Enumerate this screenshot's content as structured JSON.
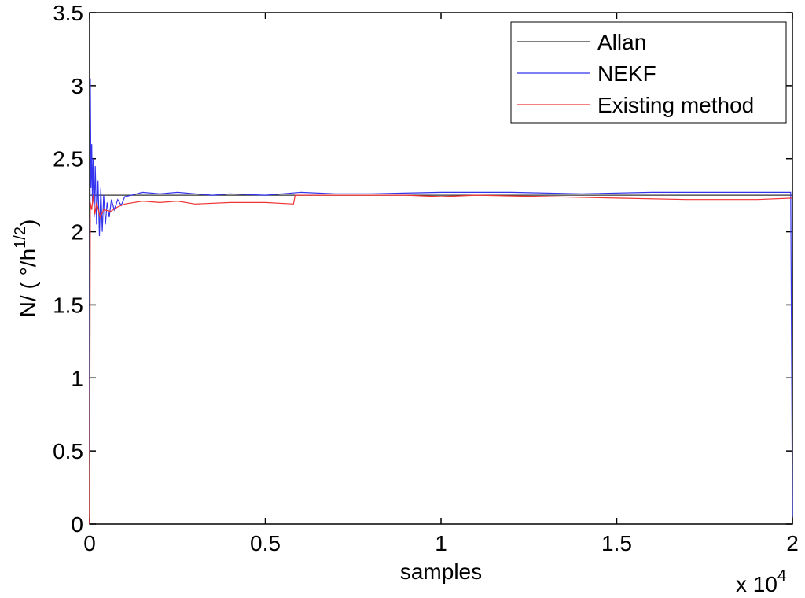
{
  "chart_data": {
    "type": "line",
    "title": "",
    "xlabel": "samples",
    "ylabel_main": "N/ ( °/h",
    "ylabel_sup": "1/2",
    "ylabel_close": ")",
    "x_multiplier_base": "x 10",
    "x_multiplier_exp": "4",
    "xlim": [
      0,
      20000
    ],
    "ylim": [
      0,
      3.5
    ],
    "xticks": [
      0,
      5000,
      10000,
      15000,
      20000
    ],
    "xtick_labels": [
      "0",
      "0.5",
      "1",
      "1.5",
      "2"
    ],
    "yticks": [
      0,
      0.5,
      1,
      1.5,
      2,
      2.5,
      3,
      3.5
    ],
    "ytick_labels": [
      "0",
      "0.5",
      "1",
      "1.5",
      "2",
      "2.5",
      "3",
      "3.5"
    ],
    "grid": false,
    "legend_position": "top-right",
    "series": [
      {
        "name": "Allan",
        "color": "#333333",
        "points": [
          [
            0,
            2.25
          ],
          [
            20000,
            2.25
          ]
        ]
      },
      {
        "name": "NEKF",
        "color": "#3333ee",
        "points": [
          [
            0,
            0.5
          ],
          [
            20,
            3.05
          ],
          [
            40,
            2.3
          ],
          [
            60,
            2.6
          ],
          [
            80,
            2.2
          ],
          [
            100,
            2.5
          ],
          [
            130,
            2.1
          ],
          [
            160,
            2.45
          ],
          [
            200,
            2.05
          ],
          [
            240,
            2.35
          ],
          [
            280,
            1.97
          ],
          [
            320,
            2.3
          ],
          [
            360,
            2.0
          ],
          [
            400,
            2.25
          ],
          [
            450,
            2.05
          ],
          [
            500,
            2.2
          ],
          [
            560,
            2.1
          ],
          [
            620,
            2.22
          ],
          [
            700,
            2.15
          ],
          [
            800,
            2.22
          ],
          [
            900,
            2.18
          ],
          [
            1000,
            2.24
          ],
          [
            1200,
            2.25
          ],
          [
            1500,
            2.27
          ],
          [
            2000,
            2.26
          ],
          [
            2500,
            2.27
          ],
          [
            3000,
            2.26
          ],
          [
            3500,
            2.25
          ],
          [
            4000,
            2.26
          ],
          [
            5000,
            2.25
          ],
          [
            6000,
            2.27
          ],
          [
            7000,
            2.26
          ],
          [
            8000,
            2.26
          ],
          [
            10000,
            2.27
          ],
          [
            12000,
            2.27
          ],
          [
            14000,
            2.26
          ],
          [
            16000,
            2.27
          ],
          [
            18000,
            2.27
          ],
          [
            19950,
            2.27
          ],
          [
            20000,
            0.05
          ]
        ]
      },
      {
        "name": "Existing method",
        "color": "#ee3333",
        "points": [
          [
            0,
            0.0
          ],
          [
            20,
            2.2
          ],
          [
            60,
            2.15
          ],
          [
            100,
            2.25
          ],
          [
            150,
            2.12
          ],
          [
            200,
            2.2
          ],
          [
            300,
            2.1
          ],
          [
            400,
            2.15
          ],
          [
            600,
            2.14
          ],
          [
            800,
            2.17
          ],
          [
            1000,
            2.19
          ],
          [
            1500,
            2.21
          ],
          [
            2000,
            2.2
          ],
          [
            2500,
            2.21
          ],
          [
            3000,
            2.19
          ],
          [
            4000,
            2.2
          ],
          [
            5000,
            2.2
          ],
          [
            5800,
            2.19
          ],
          [
            5850,
            2.25
          ],
          [
            7000,
            2.25
          ],
          [
            9000,
            2.25
          ],
          [
            10000,
            2.24
          ],
          [
            11000,
            2.25
          ],
          [
            13000,
            2.24
          ],
          [
            15000,
            2.23
          ],
          [
            17000,
            2.22
          ],
          [
            19000,
            2.22
          ],
          [
            20000,
            2.23
          ]
        ]
      }
    ]
  }
}
